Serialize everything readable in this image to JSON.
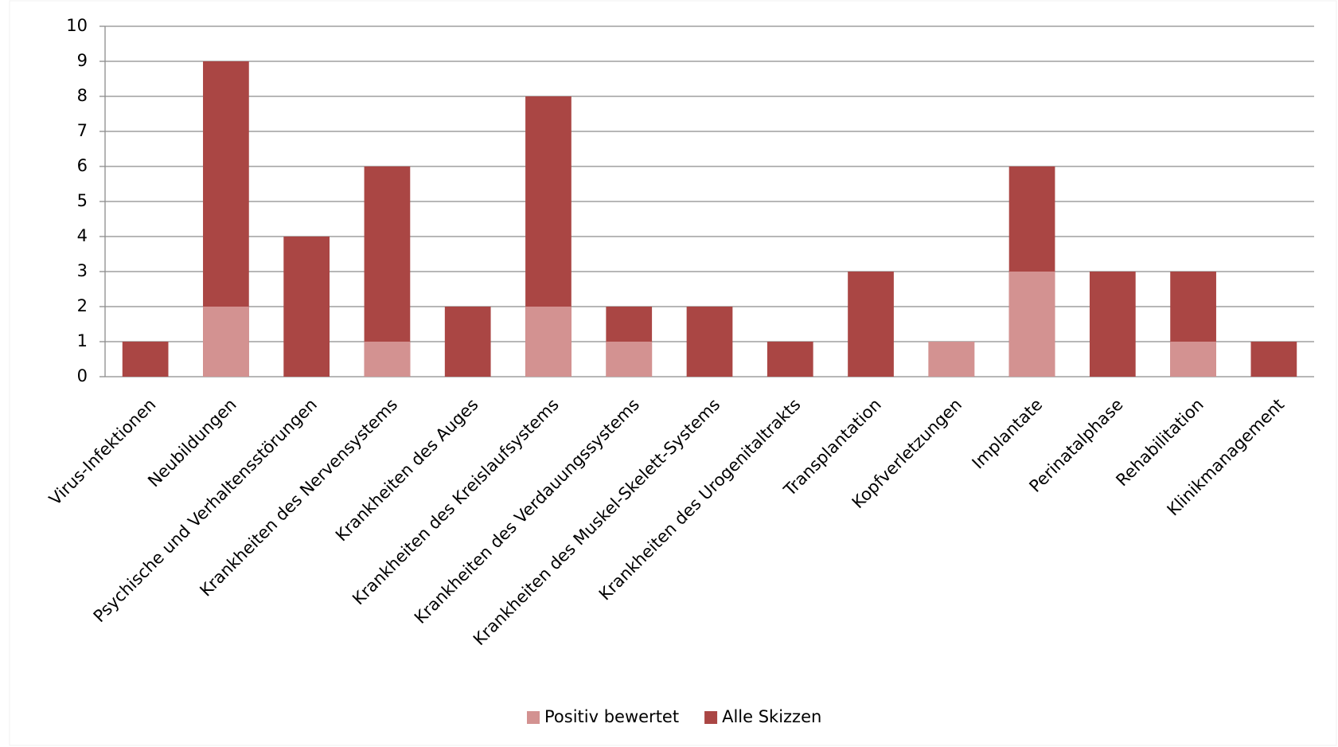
{
  "chart_data": {
    "type": "bar",
    "categories": [
      "Virus-Infektionen",
      "Neubildungen",
      "Psychische und Verhaltensstörungen",
      "Krankheiten des Nervensystems",
      "Krankheiten des Auges",
      "Krankheiten des Kreislaufsystems",
      "Krankheiten des Verdauungssystems",
      "Krankheiten des Muskel-Skelett-Systems",
      "Krankheiten des Urogenitaltrakts",
      "Transplantation",
      "Kopfverletzungen",
      "Implantate",
      "Perinatalphase",
      "Rehabilitation",
      "Klinikmanagement"
    ],
    "series": [
      {
        "name": "Positiv bewertet",
        "color": "#d39291",
        "values": [
          0,
          2,
          0,
          1,
          0,
          2,
          1,
          0,
          0,
          0,
          1,
          3,
          0,
          1,
          0
        ]
      },
      {
        "name": "Alle Skizzen",
        "color": "#aa4644",
        "values": [
          1,
          9,
          4,
          6,
          2,
          8,
          2,
          2,
          1,
          3,
          1,
          6,
          3,
          3,
          1
        ]
      }
    ],
    "ylim": [
      0,
      10
    ],
    "yticks": [
      0,
      1,
      2,
      3,
      4,
      5,
      6,
      7,
      8,
      9,
      10
    ],
    "grid": true,
    "legend": "bottom"
  }
}
